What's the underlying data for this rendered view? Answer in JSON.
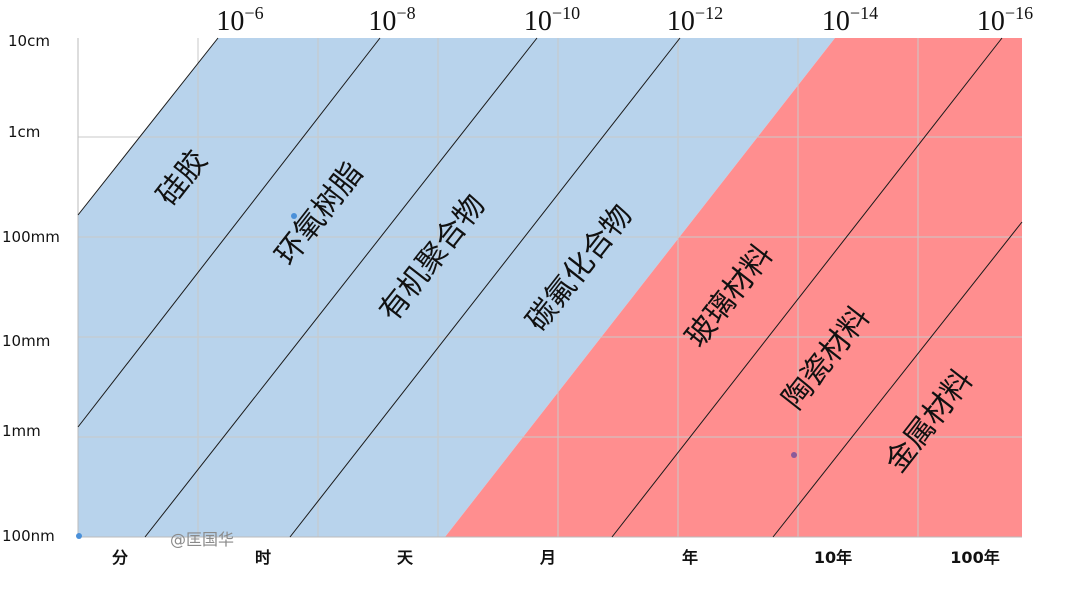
{
  "top_labels": [
    {
      "base": "10",
      "exp": "−6"
    },
    {
      "base": "10",
      "exp": "−8"
    },
    {
      "base": "10",
      "exp": "−10"
    },
    {
      "base": "10",
      "exp": "−12"
    },
    {
      "base": "10",
      "exp": "−14"
    },
    {
      "base": "10",
      "exp": "−16"
    }
  ],
  "y_labels": [
    "10cm",
    "1cm",
    "100mm",
    "10mm",
    "1mm",
    "100nm"
  ],
  "x_labels": [
    "分",
    "时",
    "天",
    "月",
    "年",
    "10年",
    "100年"
  ],
  "materials": [
    "硅胶",
    "环氧树脂",
    "有机聚合物",
    "碳氟化合物",
    "玻璃材料",
    "陶瓷材料",
    "金属材料"
  ],
  "watermark": "@匡国华"
}
